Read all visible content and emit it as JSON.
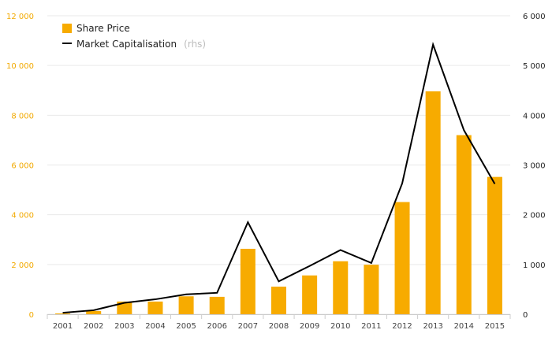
{
  "chart_data": {
    "type": "bar",
    "categories": [
      "2001",
      "2002",
      "2003",
      "2004",
      "2005",
      "2006",
      "2007",
      "2008",
      "2009",
      "2010",
      "2011",
      "2012",
      "2013",
      "2014",
      "2015"
    ],
    "series": [
      {
        "name": "Share Price",
        "axis": "left",
        "kind": "bar",
        "color": "#f7ab00",
        "values": [
          30,
          130,
          510,
          510,
          720,
          700,
          2630,
          1110,
          1560,
          2130,
          1990,
          4510,
          8960,
          7200,
          5520
        ]
      },
      {
        "name": "Market Capitalisation",
        "axis": "right",
        "kind": "line",
        "color": "#000000",
        "values": [
          30,
          80,
          230,
          300,
          400,
          430,
          1850,
          660,
          970,
          1290,
          1030,
          2630,
          5420,
          3700,
          2620
        ]
      }
    ],
    "legend": {
      "share_price": "Share Price",
      "market_cap": "Market Capitalisation",
      "market_cap_note": "(rhs)",
      "placement": "top-left"
    },
    "y_left": {
      "range": [
        0,
        12000
      ],
      "ticks": [
        0,
        2000,
        4000,
        6000,
        8000,
        10000,
        12000
      ],
      "tick_labels": [
        "0",
        "2 000",
        "4 000",
        "6 000",
        "8 000",
        "10 000",
        "12 000"
      ],
      "color": "#f2a900"
    },
    "y_right": {
      "range": [
        0,
        6000
      ],
      "ticks": [
        0,
        1000,
        2000,
        3000,
        4000,
        5000,
        6000
      ],
      "tick_labels": [
        "0",
        "1 000",
        "2 000",
        "3 000",
        "4 000",
        "5 000",
        "6 000"
      ],
      "color": "#222222"
    },
    "grid": true
  }
}
